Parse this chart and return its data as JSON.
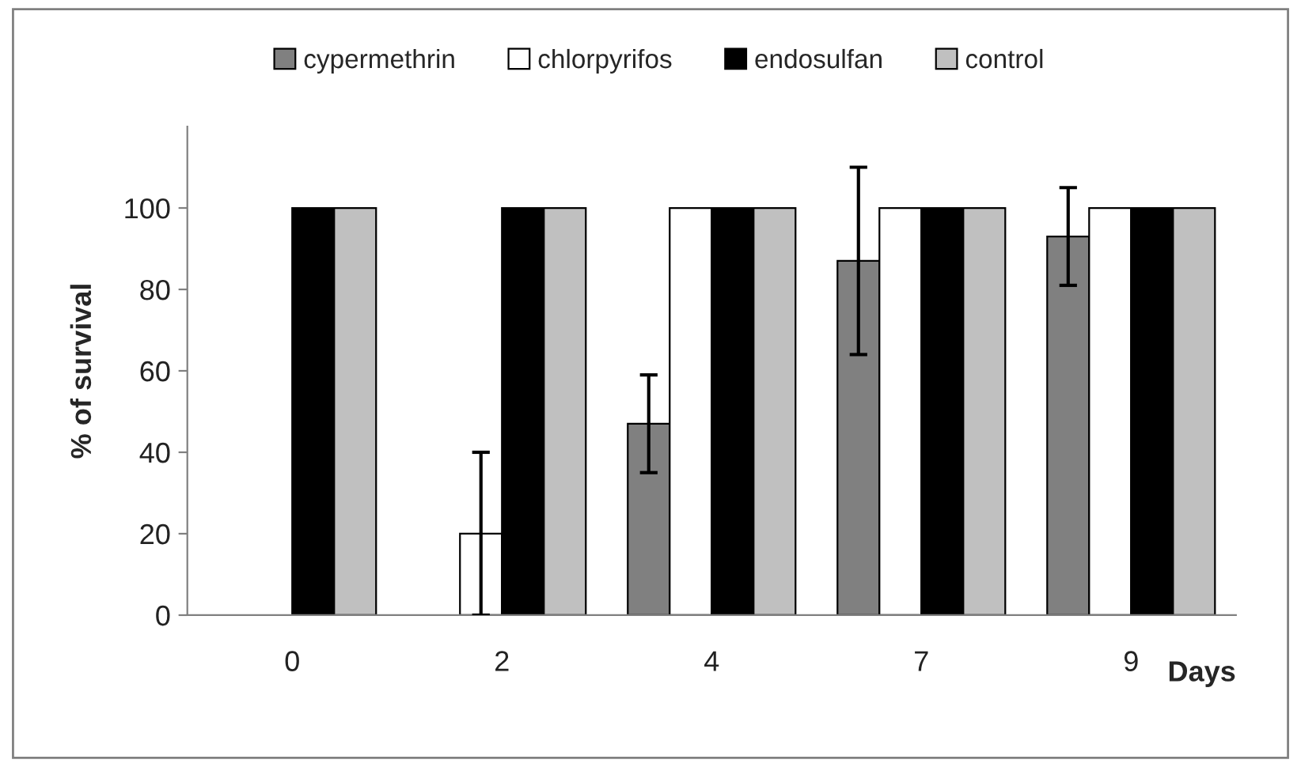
{
  "chart_data": {
    "type": "bar",
    "xlabel": "Days",
    "ylabel": "% of survival",
    "categories": [
      "0",
      "2",
      "4",
      "7",
      "9"
    ],
    "series": [
      {
        "name": "cypermethrin",
        "color": "#808080",
        "values": [
          0,
          0,
          47,
          87,
          93
        ],
        "errors": [
          null,
          null,
          12,
          23,
          12
        ]
      },
      {
        "name": "chlorpyrifos",
        "color": "#ffffff",
        "values": [
          0,
          20,
          100,
          100,
          100
        ],
        "errors": [
          null,
          20,
          null,
          null,
          null
        ]
      },
      {
        "name": "endosulfan",
        "color": "#000000",
        "values": [
          100,
          100,
          100,
          100,
          100
        ]
      },
      {
        "name": "control",
        "color": "#c0c0c0",
        "values": [
          100,
          100,
          100,
          100,
          100
        ]
      }
    ],
    "ylim": [
      0,
      120
    ],
    "yticks": [
      0,
      20,
      40,
      60,
      80,
      100
    ],
    "grid": false,
    "legend": "top"
  }
}
